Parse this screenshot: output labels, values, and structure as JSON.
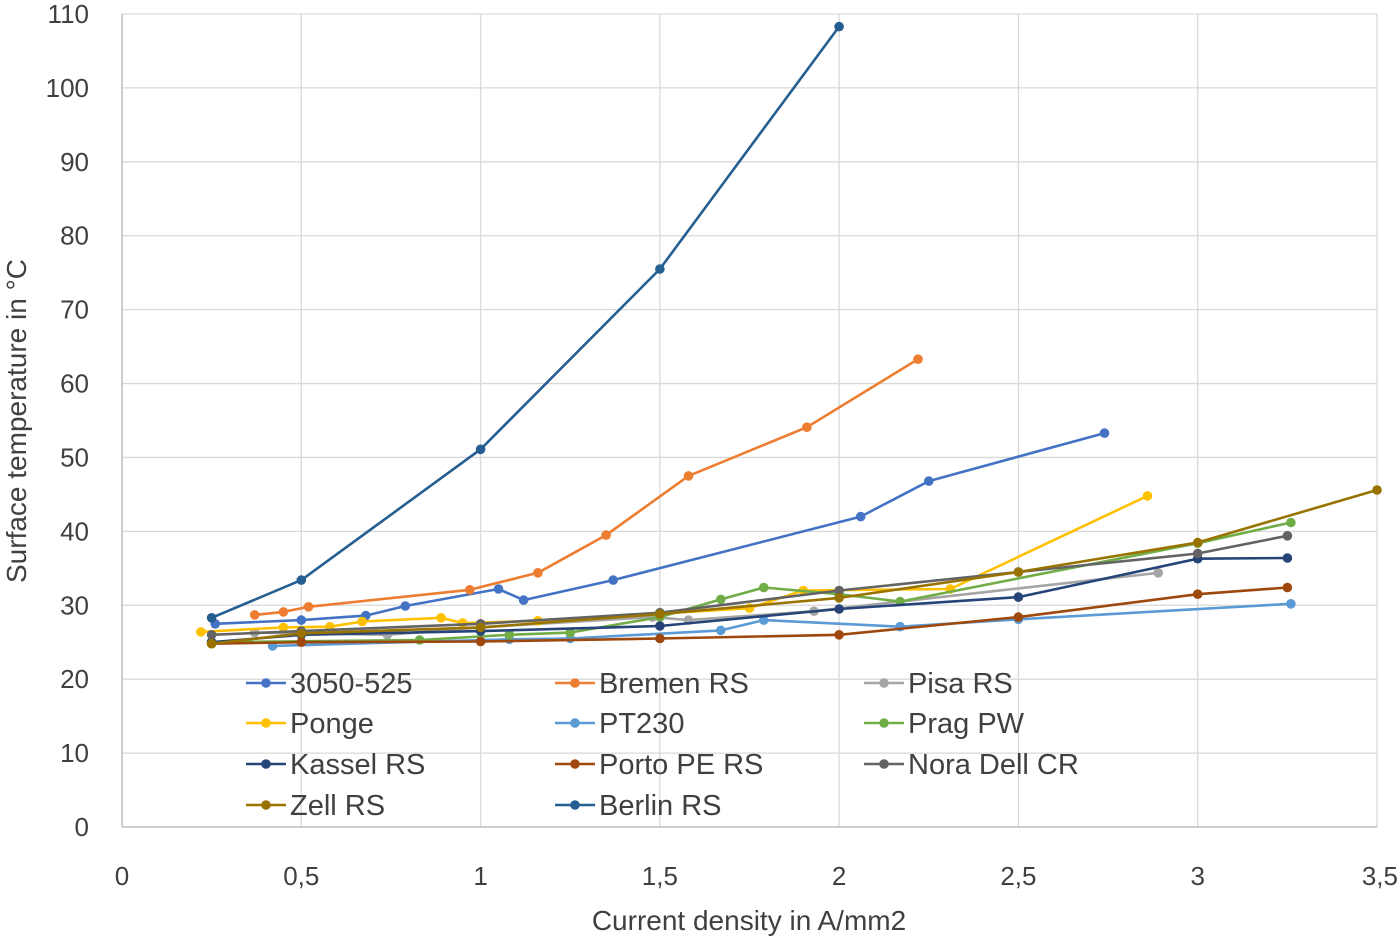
{
  "chart_data": {
    "type": "line",
    "title": "",
    "xlabel": "Current density in A/mm2",
    "ylabel": "Surface temperature in °C",
    "xlim": [
      0,
      3.5
    ],
    "ylim": [
      0,
      110
    ],
    "x_ticks": [
      0,
      0.5,
      1,
      1.5,
      2,
      2.5,
      3,
      3.5
    ],
    "x_tick_labels": [
      "0",
      "0,5",
      "1",
      "1,5",
      "2",
      "2,5",
      "3",
      "3,5"
    ],
    "y_ticks": [
      0,
      10,
      20,
      30,
      40,
      50,
      60,
      70,
      80,
      90,
      100,
      110
    ],
    "y_tick_labels": [
      "0",
      "10",
      "20",
      "30",
      "40",
      "50",
      "60",
      "70",
      "80",
      "90",
      "100",
      "110"
    ],
    "grid": true,
    "legend_position": "bottom-left inside plot",
    "series": [
      {
        "name": "3050-525",
        "color": "#4472C4",
        "points": [
          [
            0.26,
            27.5
          ],
          [
            0.5,
            28.0
          ],
          [
            0.68,
            28.6
          ],
          [
            0.79,
            29.9
          ],
          [
            1.05,
            32.2
          ],
          [
            1.12,
            30.7
          ],
          [
            1.37,
            33.4
          ],
          [
            2.06,
            42.0
          ],
          [
            2.25,
            46.8
          ],
          [
            2.74,
            53.3
          ]
        ]
      },
      {
        "name": "Bremen RS",
        "color": "#ED7D31",
        "points": [
          [
            0.37,
            28.7
          ],
          [
            0.45,
            29.1
          ],
          [
            0.52,
            29.8
          ],
          [
            0.97,
            32.1
          ],
          [
            1.16,
            34.4
          ],
          [
            1.35,
            39.5
          ],
          [
            1.58,
            47.5
          ],
          [
            1.91,
            54.1
          ],
          [
            2.22,
            63.3
          ]
        ]
      },
      {
        "name": "Pisa RS",
        "color": "#A5A5A5",
        "points": [
          [
            0.37,
            26.3
          ],
          [
            0.74,
            26.0
          ],
          [
            1.0,
            27.0
          ],
          [
            1.48,
            28.4
          ],
          [
            1.58,
            28.0
          ],
          [
            1.93,
            29.2
          ],
          [
            2.89,
            34.4
          ]
        ]
      },
      {
        "name": "Ponge",
        "color": "#FFC000",
        "points": [
          [
            0.22,
            26.4
          ],
          [
            0.45,
            27.0
          ],
          [
            0.58,
            27.1
          ],
          [
            0.67,
            27.8
          ],
          [
            0.89,
            28.3
          ],
          [
            0.95,
            27.6
          ],
          [
            1.16,
            27.9
          ],
          [
            1.75,
            29.6
          ],
          [
            1.9,
            32.0
          ],
          [
            2.31,
            32.2
          ],
          [
            2.86,
            44.8
          ]
        ]
      },
      {
        "name": "PT230",
        "color": "#5B9BD5",
        "points": [
          [
            0.42,
            24.5
          ],
          [
            1.08,
            25.4
          ],
          [
            1.25,
            25.5
          ],
          [
            1.67,
            26.6
          ],
          [
            1.79,
            28.0
          ],
          [
            2.17,
            27.1
          ],
          [
            2.5,
            28.1
          ],
          [
            3.26,
            30.2
          ]
        ]
      },
      {
        "name": "Prag PW",
        "color": "#70AD47",
        "points": [
          [
            0.25,
            25.0
          ],
          [
            0.83,
            25.3
          ],
          [
            1.08,
            26.0
          ],
          [
            1.25,
            26.3
          ],
          [
            1.5,
            28.4
          ],
          [
            1.67,
            30.8
          ],
          [
            1.79,
            32.4
          ],
          [
            2.0,
            31.5
          ],
          [
            2.17,
            30.5
          ],
          [
            3.0,
            38.4
          ],
          [
            3.26,
            41.2
          ]
        ]
      },
      {
        "name": "Kassel RS",
        "color": "#264478",
        "points": [
          [
            0.25,
            25.0
          ],
          [
            0.5,
            26.0
          ],
          [
            1.0,
            26.5
          ],
          [
            1.5,
            27.2
          ],
          [
            2.0,
            29.5
          ],
          [
            2.5,
            31.1
          ],
          [
            3.0,
            36.3
          ],
          [
            3.25,
            36.4
          ]
        ]
      },
      {
        "name": "Porto PE RS",
        "color": "#9E480E",
        "points": [
          [
            0.25,
            24.8
          ],
          [
            0.5,
            25.0
          ],
          [
            1.0,
            25.1
          ],
          [
            1.5,
            25.5
          ],
          [
            2.0,
            26.0
          ],
          [
            2.5,
            28.4
          ],
          [
            3.0,
            31.5
          ],
          [
            3.25,
            32.4
          ]
        ]
      },
      {
        "name": "Nora Dell CR",
        "color": "#636363",
        "points": [
          [
            0.25,
            26.0
          ],
          [
            0.5,
            26.5
          ],
          [
            1.0,
            27.5
          ],
          [
            1.5,
            29.0
          ],
          [
            2.0,
            32.0
          ],
          [
            2.5,
            34.5
          ],
          [
            3.0,
            37.0
          ],
          [
            3.25,
            39.4
          ]
        ]
      },
      {
        "name": "Zell RS",
        "color": "#997300",
        "points": [
          [
            0.25,
            24.8
          ],
          [
            0.5,
            26.2
          ],
          [
            1.0,
            27.0
          ],
          [
            1.5,
            28.8
          ],
          [
            2.0,
            31.0
          ],
          [
            2.5,
            34.5
          ],
          [
            3.0,
            38.5
          ],
          [
            3.5,
            45.6
          ]
        ]
      },
      {
        "name": "Berlin RS",
        "color": "#255E91",
        "points": [
          [
            0.25,
            28.3
          ],
          [
            0.5,
            33.4
          ],
          [
            1.0,
            51.1
          ],
          [
            1.5,
            75.5
          ],
          [
            2.0,
            108.3
          ]
        ]
      }
    ]
  }
}
